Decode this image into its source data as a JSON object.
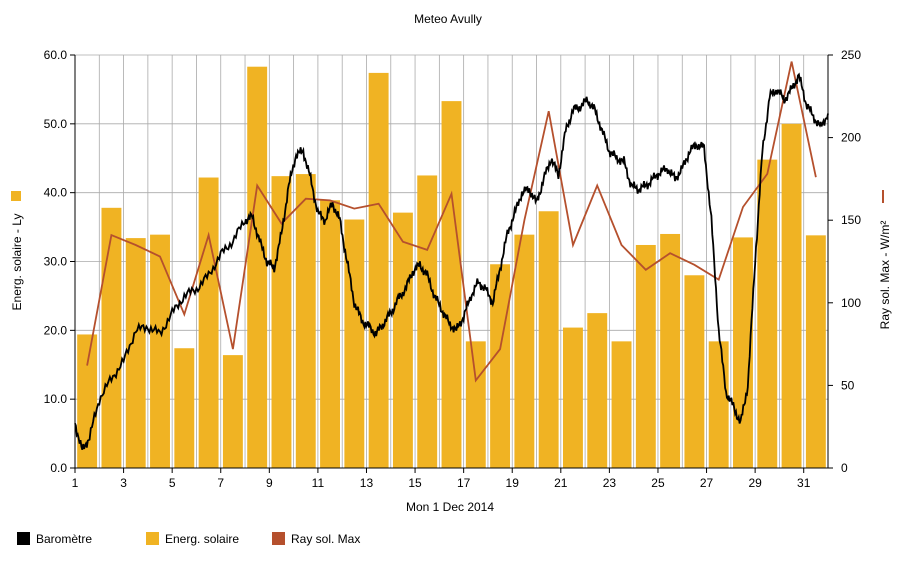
{
  "chart_data": {
    "type": "bar",
    "title": "Meteo  Avully",
    "xlabel": "Mon 1 Dec 2014",
    "ylabel_left": "Energ. solaire - Ly",
    "ylabel_right": "Ray sol. Max - W/m²",
    "xlim": [
      1,
      32
    ],
    "ylim_left": [
      0,
      60
    ],
    "ylim_right": [
      0,
      250
    ],
    "x_ticks": [
      1,
      3,
      5,
      7,
      9,
      11,
      13,
      15,
      17,
      19,
      21,
      23,
      25,
      27,
      29,
      31
    ],
    "y_ticks_left": [
      "0.0",
      "10.0",
      "20.0",
      "30.0",
      "40.0",
      "50.0",
      "60.0"
    ],
    "y_ticks_right": [
      0,
      50,
      100,
      150,
      200,
      250
    ],
    "grid": true,
    "legend_position": "bottom-left",
    "colors": {
      "bar": "#f0b323",
      "ray_line": "#b5502d",
      "baro_line": "#000000",
      "grid": "#aaaaaa"
    },
    "series": [
      {
        "name": "Energ. solaire",
        "type": "bar",
        "axis": "left",
        "x": [
          1.5,
          2.5,
          3.5,
          4.5,
          5.5,
          6.5,
          7.5,
          8.5,
          9.5,
          10.5,
          11.5,
          12.5,
          13.5,
          14.5,
          15.5,
          16.5,
          17.5,
          18.5,
          19.5,
          20.5,
          21.5,
          22.5,
          23.5,
          24.5,
          25.5,
          26.5,
          27.5,
          28.5,
          29.5,
          30.5,
          31.5
        ],
        "values": [
          19.4,
          37.8,
          33.4,
          33.9,
          17.4,
          42.2,
          16.4,
          58.3,
          42.4,
          42.7,
          38.9,
          36.1,
          57.4,
          37.1,
          42.5,
          53.3,
          18.4,
          29.6,
          33.9,
          37.3,
          20.4,
          22.5,
          18.4,
          32.4,
          34.0,
          28.0,
          18.4,
          33.5,
          44.8,
          50.0,
          33.8
        ]
      },
      {
        "name": "Ray sol. Max",
        "type": "line",
        "axis": "right",
        "x": [
          1.5,
          2.5,
          3.5,
          4.5,
          5.5,
          6.5,
          7.5,
          8.5,
          9.5,
          10.5,
          11.5,
          12.5,
          13.5,
          14.5,
          15.5,
          16.5,
          17.5,
          18.5,
          19.5,
          20.5,
          21.5,
          22.5,
          23.5,
          24.5,
          25.5,
          26.5,
          27.5,
          28.5,
          29.5,
          30.5,
          31.5
        ],
        "values": [
          62,
          141,
          135,
          128,
          93,
          141,
          72,
          171,
          148,
          163,
          162,
          157,
          160,
          137,
          132,
          166,
          53,
          72,
          150,
          216,
          135,
          171,
          135,
          120,
          130,
          123,
          114,
          158,
          178,
          246,
          176
        ]
      },
      {
        "name": "Baromètre",
        "type": "line",
        "axis": "left",
        "x": [
          1.0,
          1.3,
          1.6,
          2.0,
          2.5,
          3.0,
          3.5,
          4.0,
          4.5,
          5.0,
          5.5,
          6.0,
          6.5,
          7.0,
          7.5,
          8.0,
          8.3,
          8.6,
          8.9,
          9.2,
          9.5,
          9.8,
          10.1,
          10.4,
          10.7,
          11.0,
          11.3,
          11.6,
          11.9,
          12.2,
          12.5,
          12.8,
          13.1,
          13.4,
          13.7,
          14.0,
          14.3,
          14.6,
          14.9,
          15.2,
          15.5,
          15.8,
          16.1,
          16.4,
          16.7,
          17.0,
          17.3,
          17.6,
          17.9,
          18.2,
          18.5,
          18.8,
          19.1,
          19.4,
          19.7,
          20.0,
          20.3,
          20.6,
          20.9,
          21.2,
          21.5,
          21.8,
          22.1,
          22.4,
          22.7,
          23.0,
          23.3,
          23.6,
          23.9,
          24.2,
          24.5,
          24.8,
          25.1,
          25.4,
          25.7,
          26.0,
          26.3,
          26.6,
          26.9,
          27.2,
          27.5,
          27.8,
          28.1,
          28.4,
          28.7,
          29.0,
          29.3,
          29.6,
          29.9,
          30.2,
          30.5,
          30.8,
          31.1,
          31.4,
          31.7,
          32.0
        ],
        "values": [
          6.5,
          2.5,
          4.5,
          10.0,
          13.0,
          15.5,
          20.0,
          20.5,
          19.5,
          22.5,
          25.0,
          26.0,
          28.0,
          31.0,
          33.0,
          36.0,
          36.5,
          33.0,
          30.0,
          29.0,
          34.0,
          41.0,
          45.5,
          46.0,
          42.0,
          37.0,
          36.0,
          38.5,
          36.0,
          30.0,
          24.0,
          21.5,
          20.5,
          19.5,
          21.0,
          22.5,
          24.5,
          26.0,
          28.5,
          29.5,
          28.0,
          25.0,
          23.0,
          21.0,
          20.0,
          22.0,
          25.0,
          27.0,
          26.0,
          24.0,
          29.0,
          34.0,
          37.0,
          40.0,
          40.5,
          38.5,
          42.0,
          45.0,
          42.5,
          49.0,
          52.0,
          52.5,
          53.5,
          52.0,
          49.0,
          46.0,
          45.0,
          44.5,
          41.0,
          40.5,
          41.0,
          42.0,
          43.0,
          43.5,
          42.0,
          43.5,
          46.0,
          47.0,
          46.5,
          36.0,
          20.0,
          11.0,
          9.0,
          6.5,
          12.0,
          30.0,
          46.0,
          54.0,
          55.0,
          53.5,
          55.0,
          57.0,
          53.0,
          51.0,
          49.5,
          51.5
        ]
      }
    ]
  },
  "legend": [
    {
      "label": "Baromètre",
      "color": "#000000"
    },
    {
      "label": "Energ. solaire",
      "color": "#f0b323"
    },
    {
      "label": "Ray sol. Max",
      "color": "#b5502d"
    }
  ]
}
